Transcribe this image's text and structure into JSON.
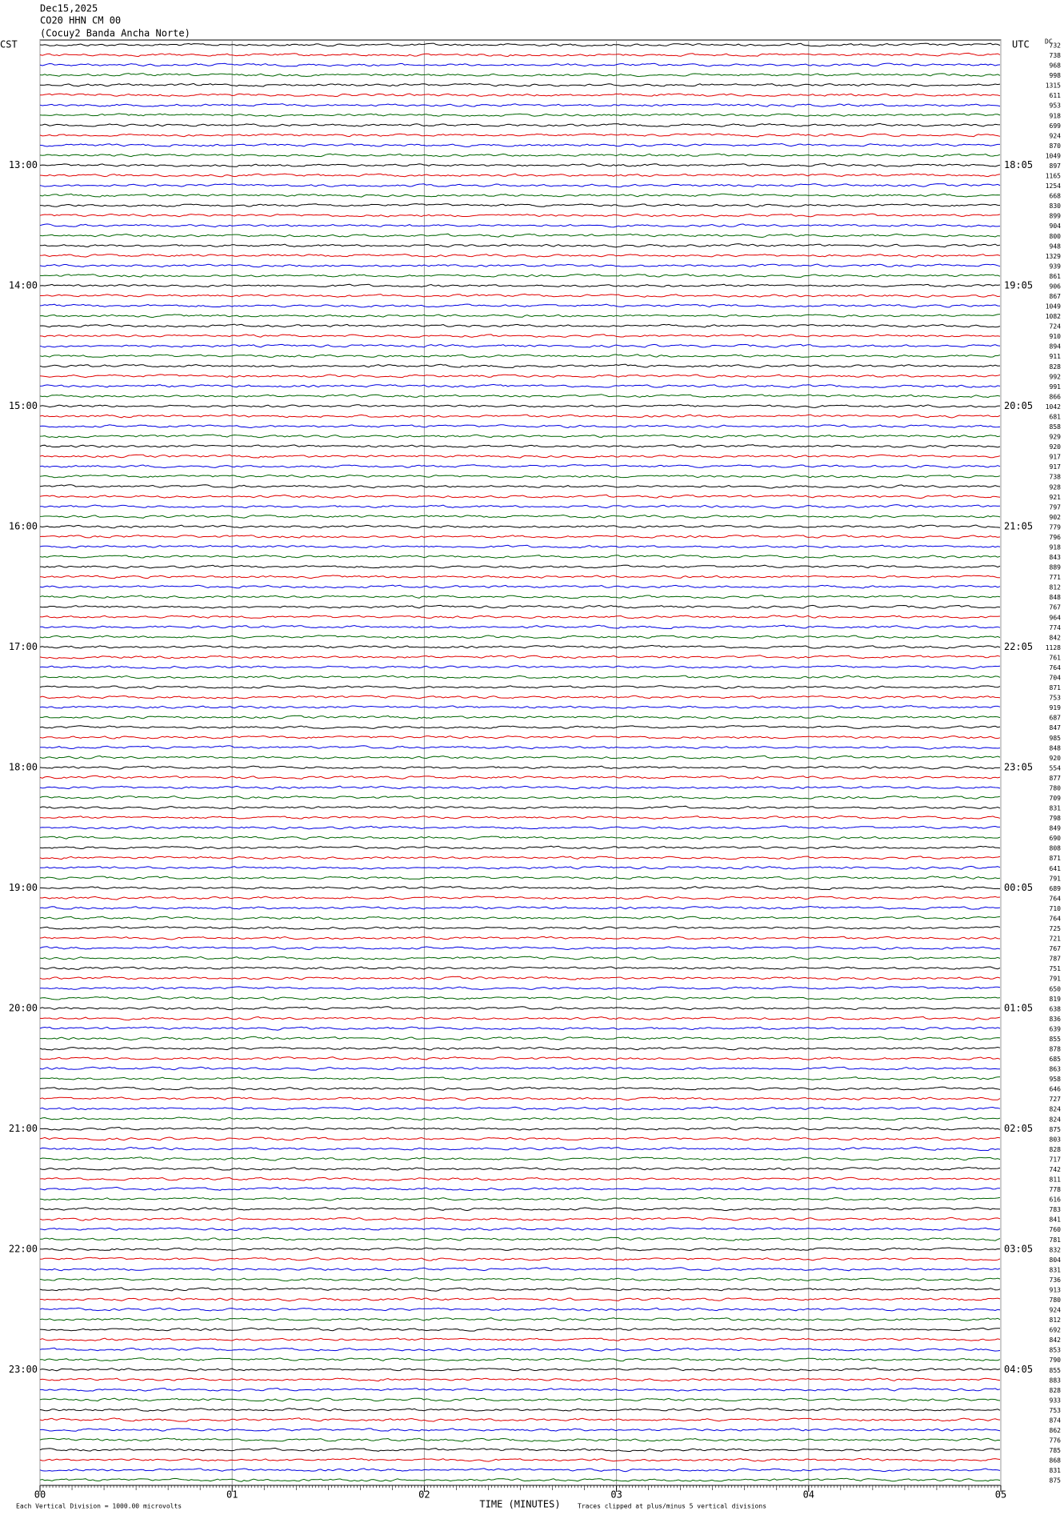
{
  "chart_data": {
    "type": "helicorder",
    "title": "Dec15,2025",
    "subtitle": "CO20 HHN CM 00",
    "station": "(Cocuy2 Banda Ancha Norte)",
    "left_axis_label": "CST",
    "right_axis_label": "UTC",
    "dc_label": "DC",
    "left_hours": [
      "13:00",
      "14:00",
      "15:00",
      "16:00",
      "17:00",
      "18:00",
      "19:00",
      "20:00",
      "21:00",
      "22:00",
      "23:00"
    ],
    "right_hours": [
      "18:05",
      "19:05",
      "20:05",
      "21:05",
      "22:05",
      "23:05",
      "00:05",
      "01:05",
      "02:05",
      "03:05",
      "04:05"
    ],
    "trace_colors": [
      "#000000",
      "#e00000",
      "#0000e0",
      "#006400"
    ],
    "trace_dc": [
      732,
      738,
      968,
      998,
      1315,
      611,
      953,
      918,
      699,
      924,
      870,
      1049,
      897,
      1165,
      1254,
      668,
      830,
      899,
      904,
      800,
      948,
      1329,
      939,
      861,
      906,
      867,
      1049,
      1082,
      724,
      910,
      894,
      911,
      828,
      992,
      991,
      866,
      1042,
      681,
      858,
      929,
      920,
      917,
      917,
      738,
      928,
      921,
      797,
      902,
      779,
      796,
      918,
      843,
      889,
      771,
      812,
      848,
      767,
      964,
      774,
      842,
      1128,
      761,
      764,
      704,
      871,
      753,
      919,
      687,
      847,
      985,
      848,
      920,
      554,
      877,
      780,
      709,
      831,
      798,
      849,
      690,
      808,
      871,
      641,
      791,
      689,
      764,
      710,
      764,
      725,
      721,
      767,
      787,
      751,
      791,
      650,
      819,
      638,
      836,
      639,
      855,
      878,
      685,
      863,
      958,
      646,
      727,
      824,
      824,
      875,
      803,
      828,
      717,
      742,
      811,
      778,
      616,
      783,
      841,
      760,
      781,
      832,
      804,
      831,
      736,
      913,
      780,
      924,
      812,
      692,
      842,
      853,
      790,
      855,
      883,
      828,
      933,
      753,
      874,
      862,
      776,
      785,
      868,
      831,
      875
    ],
    "xlim": [
      0,
      5
    ],
    "xticks": [
      {
        "value": 0,
        "label": "00"
      },
      {
        "value": 1,
        "label": "01"
      },
      {
        "value": 2,
        "label": "02"
      },
      {
        "value": 3,
        "label": "03"
      },
      {
        "value": 4,
        "label": "04"
      },
      {
        "value": 5,
        "label": "05"
      }
    ],
    "xlabel": "TIME (MINUTES)",
    "footer_left": "Each Vertical Division = 1000.00 microvolts",
    "footer_right": "Traces clipped at plus/minus 5 vertical divisions"
  }
}
